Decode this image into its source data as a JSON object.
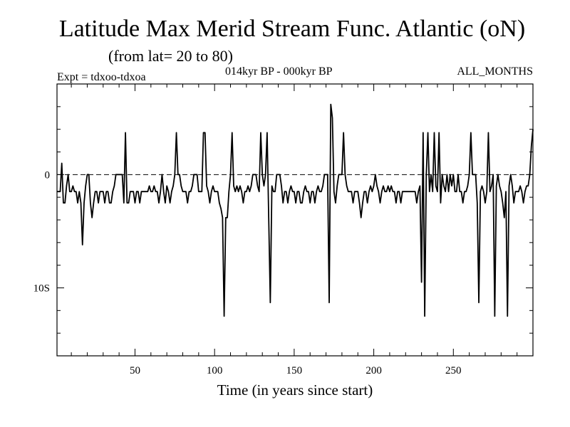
{
  "chart_data": {
    "type": "line",
    "title": "Latitude Max Merid Stream Func. Atlantic (oN)",
    "subtitle": "(from lat= 20 to 80)",
    "expt_label": "Expt = tdxoo-tdxoa",
    "period_label": "014kyr BP - 000kyr BP",
    "months_label": "ALL_MONTHS",
    "xlabel": "Time (in years since start)",
    "ylabel": "",
    "xlim": [
      1,
      300
    ],
    "ylim": [
      -16,
      8
    ],
    "xticks": [
      50,
      100,
      150,
      200,
      250
    ],
    "xtick_labels": [
      "50",
      "100",
      "150",
      "200",
      "250"
    ],
    "yticks": [
      0,
      -10
    ],
    "ytick_labels": [
      "0",
      "10S"
    ],
    "zero_line": "dashed",
    "series": [
      {
        "name": "",
        "points": [
          [
            1,
            -1.5
          ],
          [
            3,
            -1.5
          ],
          [
            4,
            1
          ],
          [
            5,
            -2.5
          ],
          [
            6,
            -2.5
          ],
          [
            7,
            -1
          ],
          [
            8,
            0
          ],
          [
            9,
            -1.5
          ],
          [
            10,
            -1.5
          ],
          [
            11,
            -1
          ],
          [
            12,
            -1.5
          ],
          [
            13,
            -1.5
          ],
          [
            14,
            -2.5
          ],
          [
            15,
            -1.5
          ],
          [
            16,
            -2.5
          ],
          [
            17,
            -6.2
          ],
          [
            18,
            -2.5
          ],
          [
            19,
            -1
          ],
          [
            20,
            0
          ],
          [
            21,
            0
          ],
          [
            22,
            -2.5
          ],
          [
            23,
            -3.8
          ],
          [
            24,
            -2.5
          ],
          [
            25,
            -1.5
          ],
          [
            26,
            -1.5
          ],
          [
            27,
            -2.5
          ],
          [
            28,
            -1.5
          ],
          [
            30,
            -1.5
          ],
          [
            31,
            -2.5
          ],
          [
            32,
            -1.5
          ],
          [
            33,
            -1.5
          ],
          [
            34,
            -2.5
          ],
          [
            35,
            -2.5
          ],
          [
            36,
            -1.5
          ],
          [
            37,
            -1
          ],
          [
            38,
            0
          ],
          [
            42,
            0
          ],
          [
            43,
            -2.5
          ],
          [
            44,
            3.7
          ],
          [
            45,
            -2.5
          ],
          [
            46,
            -2.5
          ],
          [
            47,
            -1.5
          ],
          [
            49,
            -1.5
          ],
          [
            50,
            -2.5
          ],
          [
            51,
            -1.5
          ],
          [
            52,
            -1.5
          ],
          [
            53,
            -2.5
          ],
          [
            54,
            -1.5
          ],
          [
            58,
            -1.5
          ],
          [
            59,
            -1
          ],
          [
            60,
            -1.5
          ],
          [
            61,
            -1.5
          ],
          [
            62,
            -1
          ],
          [
            63,
            -1.5
          ],
          [
            64,
            -1.5
          ],
          [
            65,
            -2.5
          ],
          [
            66,
            -1.5
          ],
          [
            67,
            0
          ],
          [
            68,
            -1.5
          ],
          [
            69,
            -2.5
          ],
          [
            70,
            -1
          ],
          [
            71,
            -1.5
          ],
          [
            72,
            -2.5
          ],
          [
            73,
            -1.5
          ],
          [
            74,
            -1
          ],
          [
            75,
            0
          ],
          [
            76,
            3.7
          ],
          [
            77,
            0
          ],
          [
            78,
            0
          ],
          [
            79,
            -1
          ],
          [
            80,
            -1.5
          ],
          [
            82,
            -1.5
          ],
          [
            83,
            -2.5
          ],
          [
            84,
            -1.5
          ],
          [
            85,
            -1.5
          ],
          [
            86,
            -1
          ],
          [
            87,
            0
          ],
          [
            89,
            0
          ],
          [
            90,
            -1.5
          ],
          [
            92,
            -1.5
          ],
          [
            93,
            3.7
          ],
          [
            94,
            3.7
          ],
          [
            95,
            -1
          ],
          [
            96,
            -1.5
          ],
          [
            97,
            -2.5
          ],
          [
            98,
            -1.5
          ],
          [
            99,
            -1
          ],
          [
            100,
            -1.5
          ],
          [
            102,
            -1.5
          ],
          [
            103,
            -2.5
          ],
          [
            104,
            -3
          ],
          [
            105,
            -3.8
          ],
          [
            106,
            -12.5
          ],
          [
            107,
            -3.8
          ],
          [
            108,
            -3.8
          ],
          [
            109,
            -1.5
          ],
          [
            110,
            0
          ],
          [
            111,
            3.7
          ],
          [
            112,
            -1
          ],
          [
            113,
            -1.5
          ],
          [
            114,
            -1
          ],
          [
            115,
            -1.5
          ],
          [
            116,
            -1
          ],
          [
            117,
            -1.5
          ],
          [
            118,
            -2.5
          ],
          [
            119,
            -1.5
          ],
          [
            120,
            -1.5
          ],
          [
            121,
            -1
          ],
          [
            122,
            -1.5
          ],
          [
            123,
            -1
          ],
          [
            124,
            0
          ],
          [
            126,
            0
          ],
          [
            127,
            -1
          ],
          [
            128,
            -1.5
          ],
          [
            129,
            3.7
          ],
          [
            130,
            0
          ],
          [
            131,
            -1
          ],
          [
            132,
            0
          ],
          [
            133,
            3.7
          ],
          [
            134,
            -3.8
          ],
          [
            135,
            -11.3
          ],
          [
            136,
            -1
          ],
          [
            137,
            -1.5
          ],
          [
            138,
            -1.5
          ],
          [
            139,
            0
          ],
          [
            141,
            0
          ],
          [
            142,
            -1
          ],
          [
            143,
            -2.5
          ],
          [
            144,
            -1.5
          ],
          [
            145,
            -1.5
          ],
          [
            146,
            -2.5
          ],
          [
            147,
            -1.5
          ],
          [
            148,
            -1
          ],
          [
            149,
            -1.5
          ],
          [
            150,
            -1.5
          ],
          [
            151,
            -2.5
          ],
          [
            152,
            -1.5
          ],
          [
            153,
            -1.5
          ],
          [
            154,
            -2.5
          ],
          [
            155,
            -2.5
          ],
          [
            156,
            -1.5
          ],
          [
            157,
            -1
          ],
          [
            158,
            -1.5
          ],
          [
            159,
            -1.5
          ],
          [
            160,
            -2.5
          ],
          [
            161,
            -1.5
          ],
          [
            162,
            -1.5
          ],
          [
            163,
            -2.5
          ],
          [
            164,
            -1.5
          ],
          [
            165,
            -1
          ],
          [
            166,
            -1.5
          ],
          [
            167,
            -1.5
          ],
          [
            168,
            -1
          ],
          [
            169,
            0
          ],
          [
            171,
            0
          ],
          [
            172,
            -11.3
          ],
          [
            173,
            6.2
          ],
          [
            174,
            5
          ],
          [
            175,
            -1.5
          ],
          [
            176,
            -2.5
          ],
          [
            177,
            -1
          ],
          [
            178,
            0
          ],
          [
            180,
            0
          ],
          [
            181,
            3.7
          ],
          [
            182,
            0
          ],
          [
            183,
            -1
          ],
          [
            184,
            -1.5
          ],
          [
            186,
            -1.5
          ],
          [
            187,
            -2.5
          ],
          [
            188,
            -1.5
          ],
          [
            190,
            -1.5
          ],
          [
            191,
            -2.5
          ],
          [
            192,
            -3.8
          ],
          [
            193,
            -2.5
          ],
          [
            194,
            -1.5
          ],
          [
            195,
            -1.5
          ],
          [
            196,
            -2.5
          ],
          [
            197,
            -1.5
          ],
          [
            198,
            -1
          ],
          [
            199,
            -1.5
          ],
          [
            200,
            -1
          ],
          [
            201,
            0
          ],
          [
            202,
            -1
          ],
          [
            203,
            -1.5
          ],
          [
            204,
            -2.5
          ],
          [
            205,
            -1.5
          ],
          [
            206,
            -1
          ],
          [
            207,
            -1.5
          ],
          [
            208,
            -1.5
          ],
          [
            209,
            -1
          ],
          [
            210,
            -1.5
          ],
          [
            211,
            -1
          ],
          [
            212,
            -1.5
          ],
          [
            213,
            -1.5
          ],
          [
            214,
            -2.5
          ],
          [
            215,
            -1.5
          ],
          [
            216,
            -1.5
          ],
          [
            217,
            -2.5
          ],
          [
            218,
            -1.5
          ],
          [
            226,
            -1.5
          ],
          [
            227,
            -2.5
          ],
          [
            228,
            -1.5
          ],
          [
            229,
            -1
          ],
          [
            230,
            -9.5
          ],
          [
            231,
            3.7
          ],
          [
            232,
            -12.5
          ],
          [
            233,
            0
          ],
          [
            234,
            3.7
          ],
          [
            235,
            -1.5
          ],
          [
            236,
            0
          ],
          [
            237,
            -1.5
          ],
          [
            238,
            3.7
          ],
          [
            239,
            -1
          ],
          [
            240,
            -1.5
          ],
          [
            241,
            3.7
          ],
          [
            242,
            -2.5
          ],
          [
            243,
            0
          ],
          [
            244,
            -1
          ],
          [
            245,
            -1.5
          ],
          [
            246,
            0
          ],
          [
            247,
            -1.5
          ],
          [
            248,
            0
          ],
          [
            249,
            -1
          ],
          [
            250,
            0
          ],
          [
            251,
            -1.5
          ],
          [
            252,
            -1.5
          ],
          [
            253,
            0
          ],
          [
            254,
            -1.5
          ],
          [
            255,
            -1.5
          ],
          [
            256,
            -2.5
          ],
          [
            257,
            -1.5
          ],
          [
            258,
            -1.5
          ],
          [
            259,
            -1
          ],
          [
            260,
            0
          ],
          [
            261,
            3.7
          ],
          [
            262,
            0
          ],
          [
            264,
            0
          ],
          [
            265,
            -2.5
          ],
          [
            266,
            -11.3
          ],
          [
            267,
            -1.5
          ],
          [
            268,
            -1
          ],
          [
            269,
            -1.5
          ],
          [
            270,
            -2.5
          ],
          [
            271,
            -1.5
          ],
          [
            272,
            3.7
          ],
          [
            273,
            -1.5
          ],
          [
            274,
            -1
          ],
          [
            275,
            0
          ],
          [
            276,
            -12.5
          ],
          [
            277,
            -1
          ],
          [
            278,
            0
          ],
          [
            279,
            -1
          ],
          [
            280,
            -1.5
          ],
          [
            281,
            -2.5
          ],
          [
            282,
            -3.8
          ],
          [
            283,
            -1.5
          ],
          [
            284,
            -12.5
          ],
          [
            285,
            -1
          ],
          [
            286,
            0
          ],
          [
            287,
            -1
          ],
          [
            288,
            -2.5
          ],
          [
            289,
            -1.5
          ],
          [
            291,
            -1.5
          ],
          [
            292,
            -1
          ],
          [
            293,
            -1.5
          ],
          [
            294,
            -2.5
          ],
          [
            295,
            -1.5
          ],
          [
            296,
            -1
          ],
          [
            297,
            -1
          ],
          [
            298,
            0
          ],
          [
            299,
            2.5
          ],
          [
            300,
            4
          ]
        ]
      }
    ]
  }
}
